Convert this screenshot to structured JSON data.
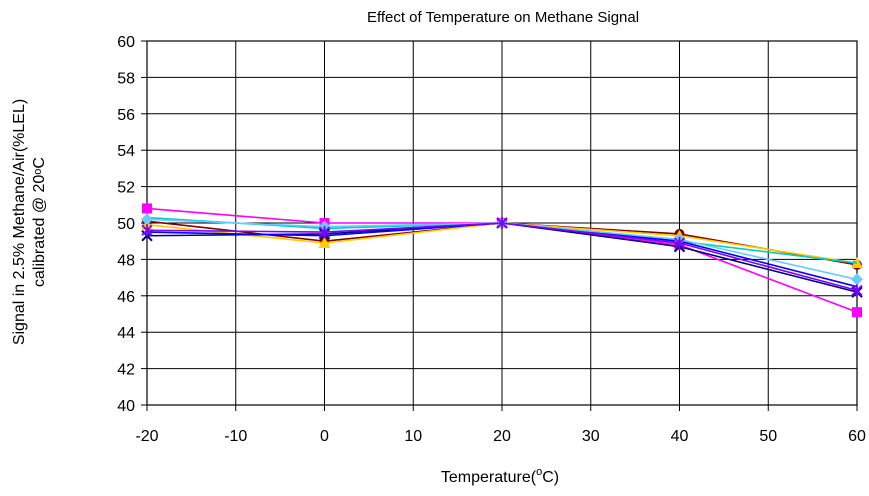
{
  "chart_data": {
    "type": "line",
    "title": "Effect of Temperature on Methane Signal",
    "xlabel_main": "Temperature(",
    "xlabel_sup": "o",
    "xlabel_end": "C)",
    "ylabel_line1": "Signal in 2.5% Methane/Air(%LEL)",
    "ylabel_line2": "calibrated @ 20",
    "ylabel_line2_deg": "o",
    "ylabel_line2_end": "C",
    "xlim": [
      -20,
      60
    ],
    "ylim": [
      40,
      60
    ],
    "x_ticks": [
      -20,
      -10,
      0,
      10,
      20,
      30,
      40,
      50,
      60
    ],
    "y_ticks": [
      40,
      42,
      44,
      46,
      48,
      50,
      52,
      54,
      56,
      58,
      60
    ],
    "grid": true,
    "x": [
      -20,
      0,
      20,
      40,
      60
    ],
    "series": [
      {
        "values": [
          50.1,
          49.0,
          50.0,
          49.4,
          47.7
        ],
        "color": "#800000",
        "marker": "circle"
      },
      {
        "values": [
          50.8,
          50.0,
          50.0,
          48.8,
          45.1
        ],
        "color": "#ff00ff",
        "marker": "square"
      },
      {
        "values": [
          49.9,
          48.9,
          50.0,
          49.3,
          47.8
        ],
        "color": "#ffcc00",
        "marker": "triangle"
      },
      {
        "values": [
          50.3,
          49.7,
          50.0,
          49.0,
          47.8
        ],
        "color": "#00cccc",
        "marker": "none"
      },
      {
        "values": [
          49.3,
          49.4,
          50.0,
          48.7,
          46.2
        ],
        "color": "#000080",
        "marker": "x"
      },
      {
        "values": [
          49.5,
          49.3,
          50.0,
          49.0,
          46.5
        ],
        "color": "#0000ff",
        "marker": "none"
      },
      {
        "values": [
          50.2,
          49.8,
          50.0,
          49.1,
          46.9
        ],
        "color": "#66ccff",
        "marker": "diamond"
      },
      {
        "values": [
          49.6,
          49.5,
          50.0,
          48.9,
          46.3
        ],
        "color": "#8000ff",
        "marker": "star"
      }
    ]
  }
}
